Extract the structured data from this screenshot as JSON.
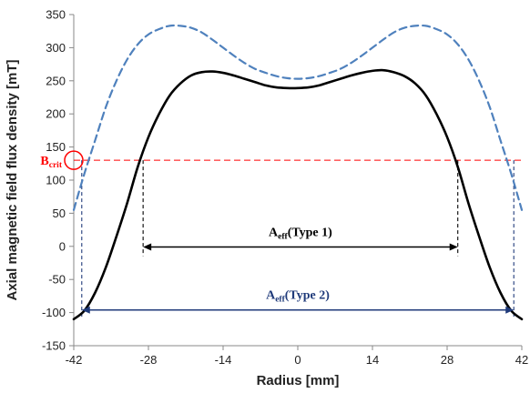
{
  "chart_data": {
    "type": "line",
    "xlabel": "Radius [mm]",
    "ylabel": "Axial magnetic field flux density [mT]",
    "xlim": [
      -42,
      42
    ],
    "ylim": [
      -150,
      350
    ],
    "x_ticks": [
      -42,
      -28,
      -14,
      0,
      14,
      28,
      42
    ],
    "x_tick_labels": [
      "-42",
      "-28",
      "-14",
      "0",
      "14",
      "28",
      "42"
    ],
    "y_ticks": [
      -150,
      -100,
      -50,
      0,
      50,
      100,
      150,
      200,
      250,
      300,
      350
    ],
    "y_tick_labels": [
      "-150",
      "-100",
      "-50",
      "0",
      "50",
      "100",
      "150",
      "200",
      "250",
      "300",
      "350"
    ],
    "grid": false,
    "legend": "none",
    "series": [
      {
        "style": "dashed",
        "color": "#4f81bd",
        "x": [
          -42,
          -40,
          -38,
          -36,
          -34,
          -32,
          -30,
          -28,
          -26,
          -24,
          -22,
          -20,
          -18,
          -16,
          -14,
          -12,
          -10,
          -8,
          -6,
          -4,
          -2,
          0,
          2,
          4,
          6,
          8,
          10,
          12,
          14,
          16,
          18,
          20,
          22,
          24,
          26,
          28,
          30,
          32,
          34,
          36,
          38,
          40,
          42
        ],
        "y": [
          55,
          110,
          160,
          210,
          250,
          282,
          305,
          320,
          328,
          333,
          333,
          330,
          323,
          312,
          300,
          288,
          277,
          268,
          262,
          257,
          254,
          253,
          254,
          257,
          262,
          268,
          277,
          288,
          300,
          312,
          323,
          330,
          333,
          333,
          328,
          320,
          305,
          282,
          250,
          210,
          160,
          110,
          55
        ]
      },
      {
        "style": "solid",
        "color": "#000000",
        "x": [
          -42,
          -40,
          -38,
          -36,
          -34,
          -32,
          -30,
          -28,
          -26,
          -24,
          -22,
          -20,
          -18,
          -16,
          -14,
          -12,
          -10,
          -8,
          -6,
          -4,
          -2,
          0,
          2,
          4,
          6,
          8,
          10,
          12,
          14,
          16,
          18,
          20,
          22,
          24,
          26,
          28,
          30,
          32,
          34,
          36,
          38,
          40,
          42
        ],
        "y": [
          -110,
          -97,
          -70,
          -32,
          15,
          65,
          120,
          165,
          200,
          228,
          246,
          258,
          263,
          264,
          262,
          258,
          253,
          248,
          243,
          240,
          239,
          239,
          240,
          243,
          248,
          253,
          258,
          262,
          265,
          266,
          263,
          257,
          246,
          228,
          200,
          165,
          120,
          65,
          15,
          -32,
          -70,
          -97,
          -110
        ]
      }
    ],
    "threshold": {
      "label_main": "B",
      "label_sub": "crit",
      "value": 130,
      "color": "#ff0000",
      "style": "dashed"
    },
    "annotations": [
      {
        "label_main": "A",
        "label_sub": "eff",
        "label_rest": "(Type 1)",
        "x_start": -29,
        "x_end": 30,
        "y": -1,
        "color": "#000000"
      },
      {
        "label_main": "A",
        "label_sub": "eff",
        "label_rest": "(Type 2)",
        "x_start": -40.5,
        "x_end": 40.5,
        "y": -96,
        "color": "#1f3a7a"
      }
    ]
  }
}
